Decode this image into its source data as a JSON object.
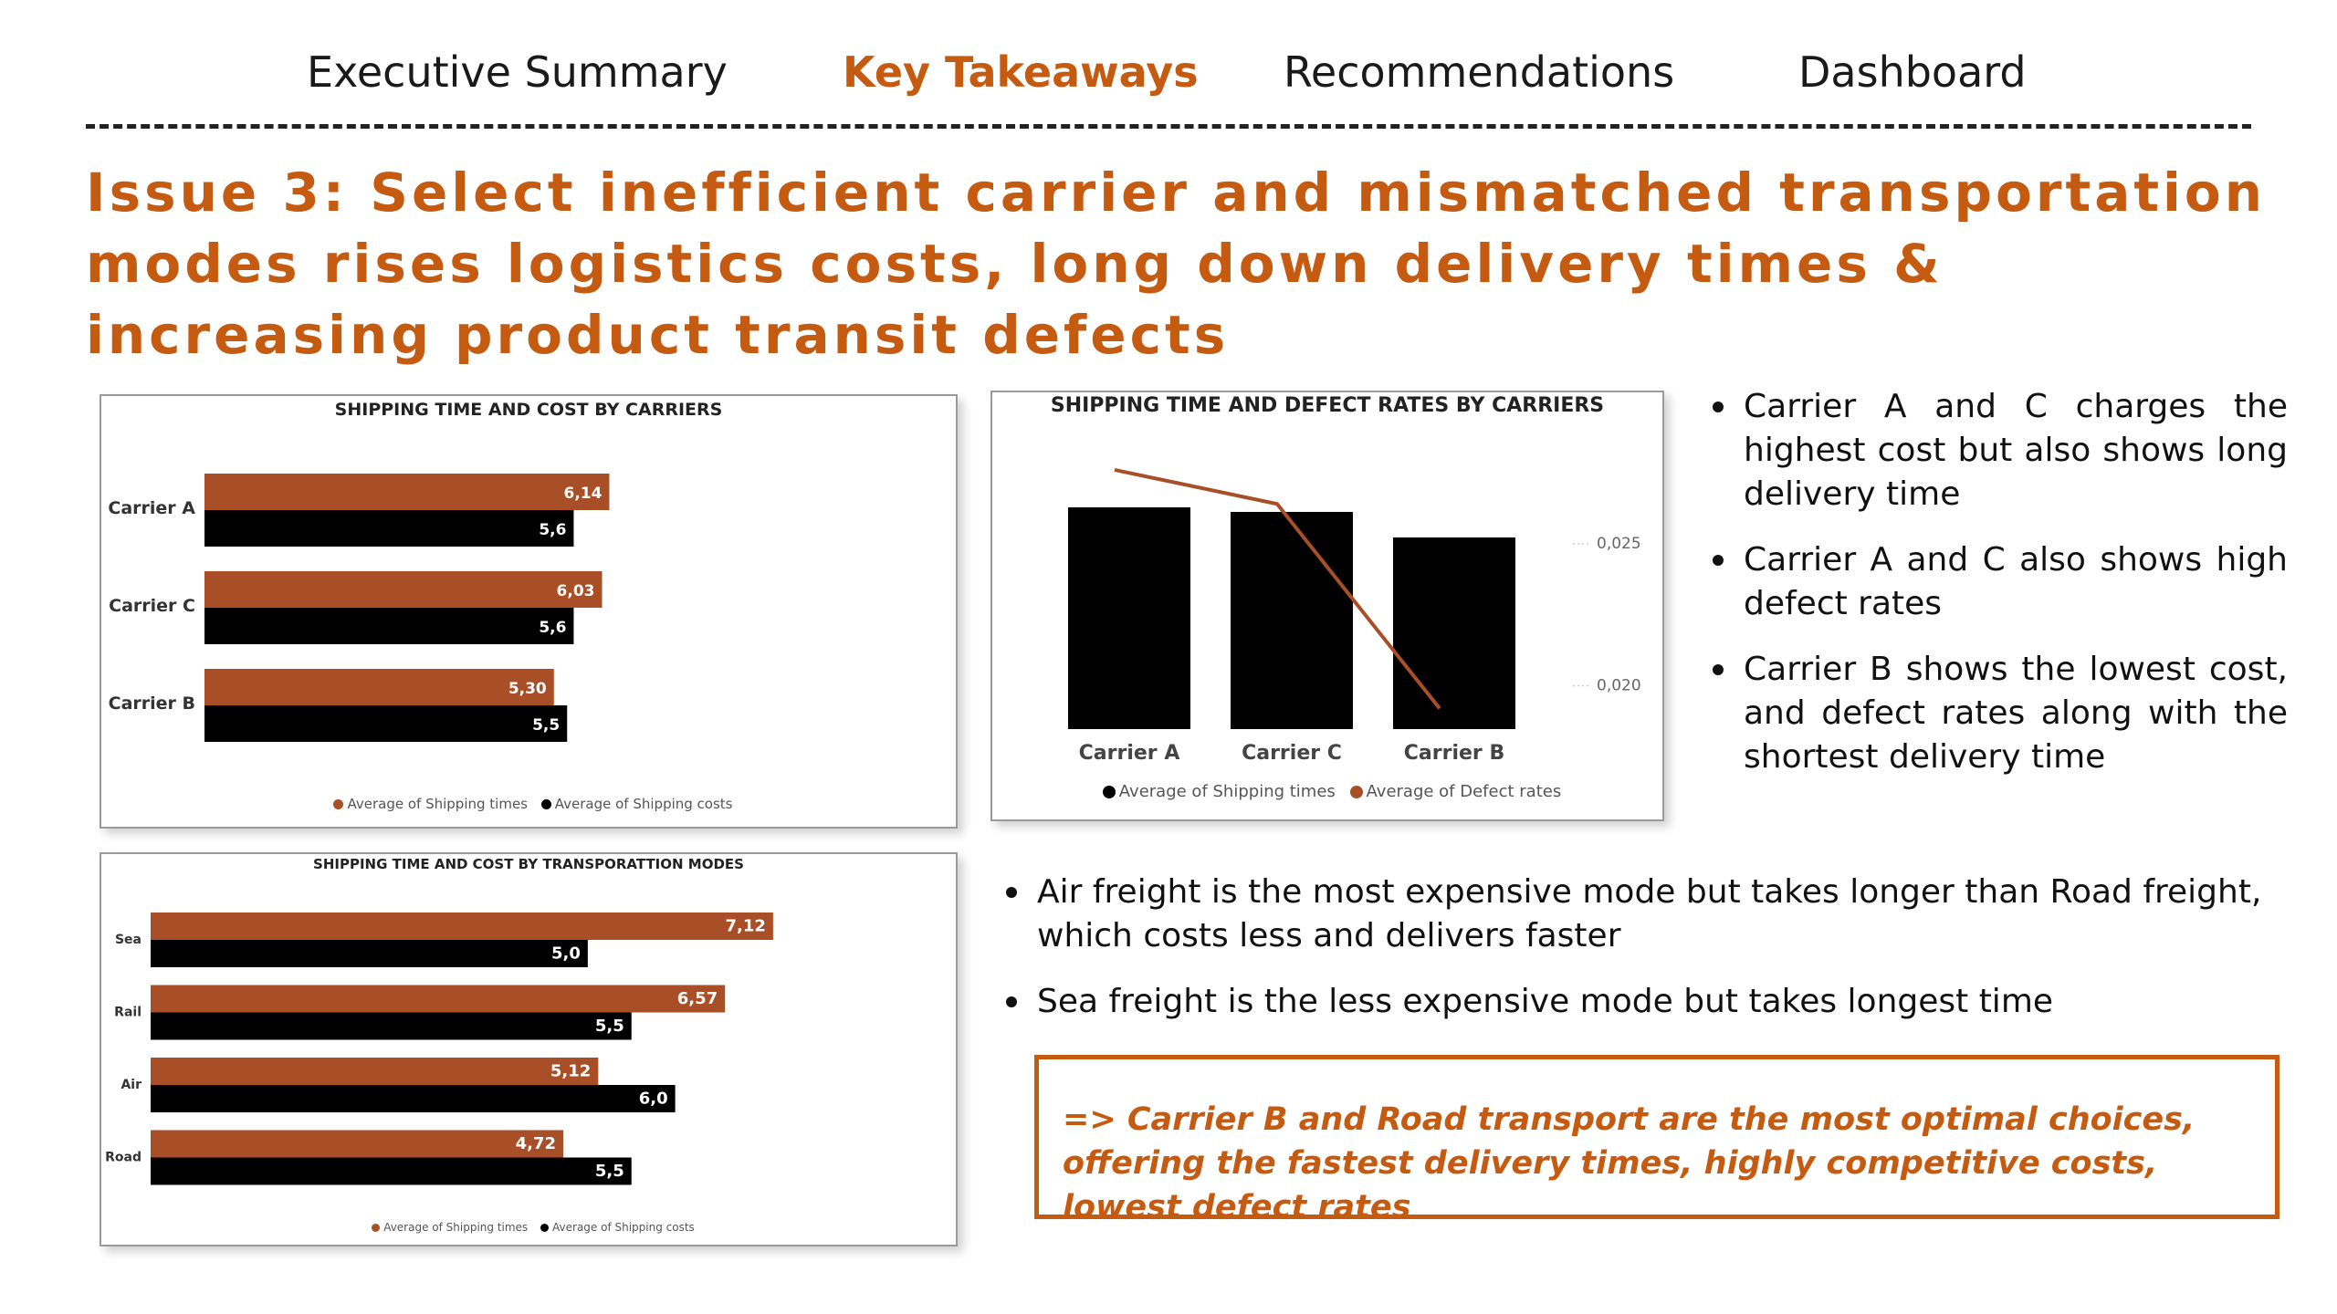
{
  "nav": {
    "items": [
      {
        "label": "Executive Summary",
        "active": false
      },
      {
        "label": "Key Takeaways",
        "active": true
      },
      {
        "label": "Recommendations",
        "active": false
      },
      {
        "label": "Dashboard",
        "active": false
      }
    ]
  },
  "page_title": "Issue 3: Select inefficient carrier and mismatched transportation modes rises logistics costs, long down delivery times & increasing product transit defects",
  "colors": {
    "accent": "#C55A11",
    "bar_orange": "#A94F27",
    "bar_black": "#000000",
    "text": "#111111"
  },
  "insights_carriers": [
    "Carrier A and C charges the highest cost but also shows long delivery time",
    "Carrier A and C also shows high defect rates",
    "Carrier B  shows the lowest cost, and defect rates along with the shortest delivery time"
  ],
  "insights_modes": [
    "Air freight is the most expensive mode but takes longer than Road freight, which costs less and delivers faster",
    "Sea freight is the less expensive mode but takes longest time"
  ],
  "conclusion": "=> Carrier B and Road transport are the most optimal choices, offering the fastest delivery times, highly competitive costs, lowest defect rates",
  "chart_data": [
    {
      "type": "bar",
      "orientation": "horizontal",
      "title": "SHIPPING TIME AND COST BY CARRIERS",
      "categories": [
        "Carrier A",
        "Carrier C",
        "Carrier B"
      ],
      "series": [
        {
          "name": "Average of Shipping times",
          "values": [
            6.14,
            6.03,
            5.3
          ],
          "labels": [
            "6,14",
            "6,03",
            "5,30"
          ],
          "color": "#A94F27"
        },
        {
          "name": "Average of Shipping costs",
          "values": [
            5.6,
            5.6,
            5.5
          ],
          "labels": [
            "5,6",
            "5,6",
            "5,5"
          ],
          "color": "#000000"
        }
      ],
      "xlim": [
        0,
        7.2
      ],
      "legend": "bottom",
      "grid": false
    },
    {
      "type": "bar+line",
      "title": "SHIPPING TIME AND DEFECT RATES BY CARRIERS",
      "categories": [
        "Carrier A",
        "Carrier C",
        "Carrier B"
      ],
      "series": [
        {
          "name": "Average of Shipping times",
          "type": "bar",
          "values": [
            6.14,
            6.03,
            5.3
          ],
          "color": "#000000"
        },
        {
          "name": "Average of Defect rates",
          "type": "line",
          "values": [
            0.0276,
            0.0264,
            0.0192
          ],
          "color": "#A94F27"
        }
      ],
      "bar_ylim": [
        0,
        7.1
      ],
      "secondary_axis": {
        "ticks": [
          "0,025",
          "0,020"
        ],
        "tick_values": [
          0.025,
          0.02
        ],
        "range": [
          0.0178,
          0.0284
        ]
      },
      "legend": "bottom",
      "grid": false
    },
    {
      "type": "bar",
      "orientation": "horizontal",
      "title": "SHIPPING TIME AND COST BY TRANSPORATTION MODES",
      "categories": [
        "Sea",
        "Rail",
        "Air",
        "Road"
      ],
      "series": [
        {
          "name": "Average of Shipping times",
          "values": [
            7.12,
            6.57,
            5.12,
            4.72
          ],
          "labels": [
            "7,12",
            "6,57",
            "5,12",
            "4,72"
          ],
          "color": "#A94F27"
        },
        {
          "name": "Average of Shipping costs",
          "values": [
            5.0,
            5.5,
            6.0,
            5.5
          ],
          "labels": [
            "5,0",
            "5,5",
            "6,0",
            "5,5"
          ],
          "color": "#000000"
        }
      ],
      "xlim": [
        0,
        7.8
      ],
      "legend": "bottom",
      "grid": false
    }
  ]
}
